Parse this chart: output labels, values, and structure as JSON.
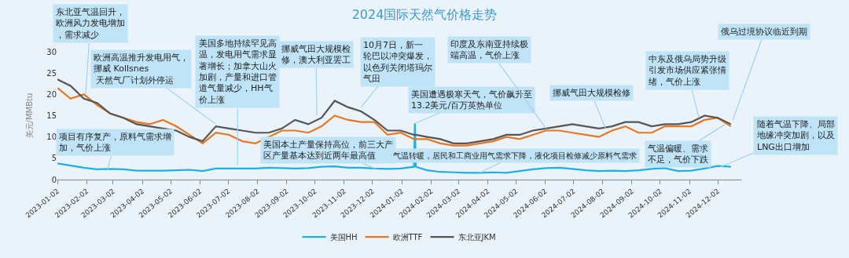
{
  "chart_data": {
    "type": "line",
    "title": "2024国际天然气价格走势",
    "ylabel": "美元/MMBtu",
    "x": [
      "2023-01-02",
      "2023-01-16",
      "2023-01-30",
      "2023-02-13",
      "2023-02-27",
      "2023-03-13",
      "2023-03-27",
      "2023-04-10",
      "2023-04-24",
      "2023-05-08",
      "2023-05-22",
      "2023-06-05",
      "2023-06-19",
      "2023-07-03",
      "2023-07-17",
      "2023-07-31",
      "2023-08-14",
      "2023-08-28",
      "2023-09-11",
      "2023-09-25",
      "2023-10-09",
      "2023-10-23",
      "2023-11-06",
      "2023-11-20",
      "2023-12-04",
      "2023-12-18",
      "2024-01-01",
      "2024-01-15",
      "2024-01-16",
      "2024-01-17",
      "2024-01-29",
      "2024-02-12",
      "2024-02-26",
      "2024-03-11",
      "2024-03-25",
      "2024-04-08",
      "2024-04-22",
      "2024-05-06",
      "2024-05-20",
      "2024-06-03",
      "2024-06-17",
      "2024-07-01",
      "2024-07-15",
      "2024-07-29",
      "2024-08-12",
      "2024-08-26",
      "2024-09-09",
      "2024-09-23",
      "2024-10-07",
      "2024-10-21",
      "2024-11-04",
      "2024-11-18",
      "2024-12-02",
      "2024-12-16"
    ],
    "series": [
      {
        "name": "美国HH",
        "color": "#1fb0e0",
        "values": [
          3.8,
          3.3,
          2.8,
          2.4,
          2.5,
          2.4,
          2.1,
          2.1,
          2.1,
          2.2,
          2.3,
          2.0,
          2.6,
          2.6,
          2.6,
          2.6,
          2.8,
          2.7,
          2.6,
          2.7,
          3.0,
          3.1,
          2.8,
          2.8,
          2.6,
          2.5,
          2.6,
          3.0,
          13.2,
          3.0,
          2.2,
          1.8,
          1.7,
          1.6,
          1.6,
          1.7,
          1.6,
          2.0,
          2.4,
          2.7,
          2.8,
          2.5,
          2.2,
          2.0,
          2.1,
          2.0,
          2.2,
          2.5,
          2.7,
          2.0,
          2.1,
          2.6,
          3.2,
          3.0
        ]
      },
      {
        "name": "欧洲TTF",
        "color": "#e87722",
        "values": [
          21.5,
          19,
          20,
          17.5,
          15.5,
          14.5,
          13.5,
          13,
          14,
          12.5,
          10.5,
          8.5,
          11,
          10.5,
          9,
          8.5,
          10,
          11.5,
          11.5,
          11,
          12.5,
          15,
          14,
          13.5,
          13.5,
          10.5,
          11,
          9.5,
          9.5,
          9.5,
          9.5,
          8.5,
          8,
          8,
          8.5,
          9,
          10,
          9.5,
          10.5,
          11.5,
          11.5,
          11,
          10.5,
          10,
          11.5,
          12.5,
          11,
          11,
          12.5,
          12.5,
          12.5,
          14,
          14.5,
          12.5
        ]
      },
      {
        "name": "东北亚JKM",
        "color": "#555555",
        "values": [
          23.5,
          22,
          19,
          18,
          15.5,
          14.5,
          13,
          12.5,
          12,
          11.5,
          10,
          9,
          12.5,
          12,
          11.5,
          11,
          11,
          12,
          14,
          13,
          14.5,
          18.5,
          17,
          16,
          14,
          11.5,
          11.5,
          10.5,
          10.5,
          10.5,
          10,
          9.5,
          8.5,
          8.5,
          9,
          9.5,
          10.5,
          10.5,
          11.5,
          12,
          12.5,
          13,
          12.5,
          12,
          12.5,
          13.5,
          13.5,
          12.5,
          13,
          13,
          13.5,
          15,
          14.5,
          13
        ]
      }
    ],
    "xlim": [
      "2023-01-02",
      "2024-12-27"
    ],
    "xticks": [
      "2023-01-02",
      "2023-02-02",
      "2023-03-02",
      "2023-04-02",
      "2023-05-02",
      "2023-06-02",
      "2023-07-02",
      "2023-08-02",
      "2023-09-02",
      "2023-10-02",
      "2023-11-02",
      "2023-12-02",
      "2024-01-02",
      "2024-02-02",
      "2024-03-02",
      "2024-04-02",
      "2024-05-02",
      "2024-06-02",
      "2024-07-02",
      "2024-08-02",
      "2024-09-02",
      "2024-10-02",
      "2024-11-02",
      "2024-12-02"
    ],
    "ylim": [
      0,
      30
    ],
    "yticks": [
      0,
      5,
      10,
      15,
      20,
      25,
      30
    ],
    "grid": false,
    "legend": "bottom",
    "marker": "none",
    "line_style": "solid",
    "annotations": [
      {
        "text": "东北亚气温回升，欧洲风力发电增加，需求减少",
        "x": "2023-02-01",
        "y": 20
      },
      {
        "text": "项目有序复产，原料气需求增加，气价上涨",
        "x": "2023-02-24",
        "y": 2.4
      },
      {
        "text": "欧洲高温推升发电用气，挪威 Kollsnes 天然气厂计划外停运",
        "x": "2023-06-19",
        "y": 13
      },
      {
        "text": "美国多地持续罕见高温，发电用气需求显著增长；加拿大山火加剧，产量和进口管道气量减少，HH气价上涨",
        "x": "2023-07-12",
        "y": 3.5
      },
      {
        "text": "挪威气田大规模检修，澳大利亚罢工",
        "x": "2023-10-04",
        "y": 15
      },
      {
        "text": "10月7日，新一轮巴以冲突爆发，以色列关闭塔玛尔气田",
        "x": "2023-11-20",
        "y": 17
      },
      {
        "text": "美国遭遇极寒天气，气价飙升至13.2美元/百万英热单位",
        "x": "2024-01-16",
        "y": 13.2
      },
      {
        "text": "美国本土产量保持高位，前三大产区产量基本达到近两年最高值",
        "x": "2023-12-05",
        "y": 2.6
      },
      {
        "text": "印度及东南亚持续极端高温，气价上涨",
        "x": "2024-06-03",
        "y": 12
      },
      {
        "text": "气温转暖，居民和工商业用气需求下降，液化项目检修减少原料气需求",
        "x": "2024-03-25",
        "y": 1.6
      },
      {
        "text": "挪威气田大规模检修",
        "x": "2024-08-05",
        "y": 12
      },
      {
        "text": "中东及俄乌局势升级引发市场供应紧张情绪，气价上涨",
        "x": "2024-11-12",
        "y": 14.5
      },
      {
        "text": "俄乌过境协议临近到期",
        "x": "2024-12-18",
        "y": 14
      },
      {
        "text": "气温偏暖、需求不足，气价下跌",
        "x": "2024-12-10",
        "y": 13
      },
      {
        "text": "随着气温下降、局部地缘冲突加剧，以及LNG出口增加",
        "x": "2024-12-05",
        "y": 3.0
      }
    ]
  }
}
